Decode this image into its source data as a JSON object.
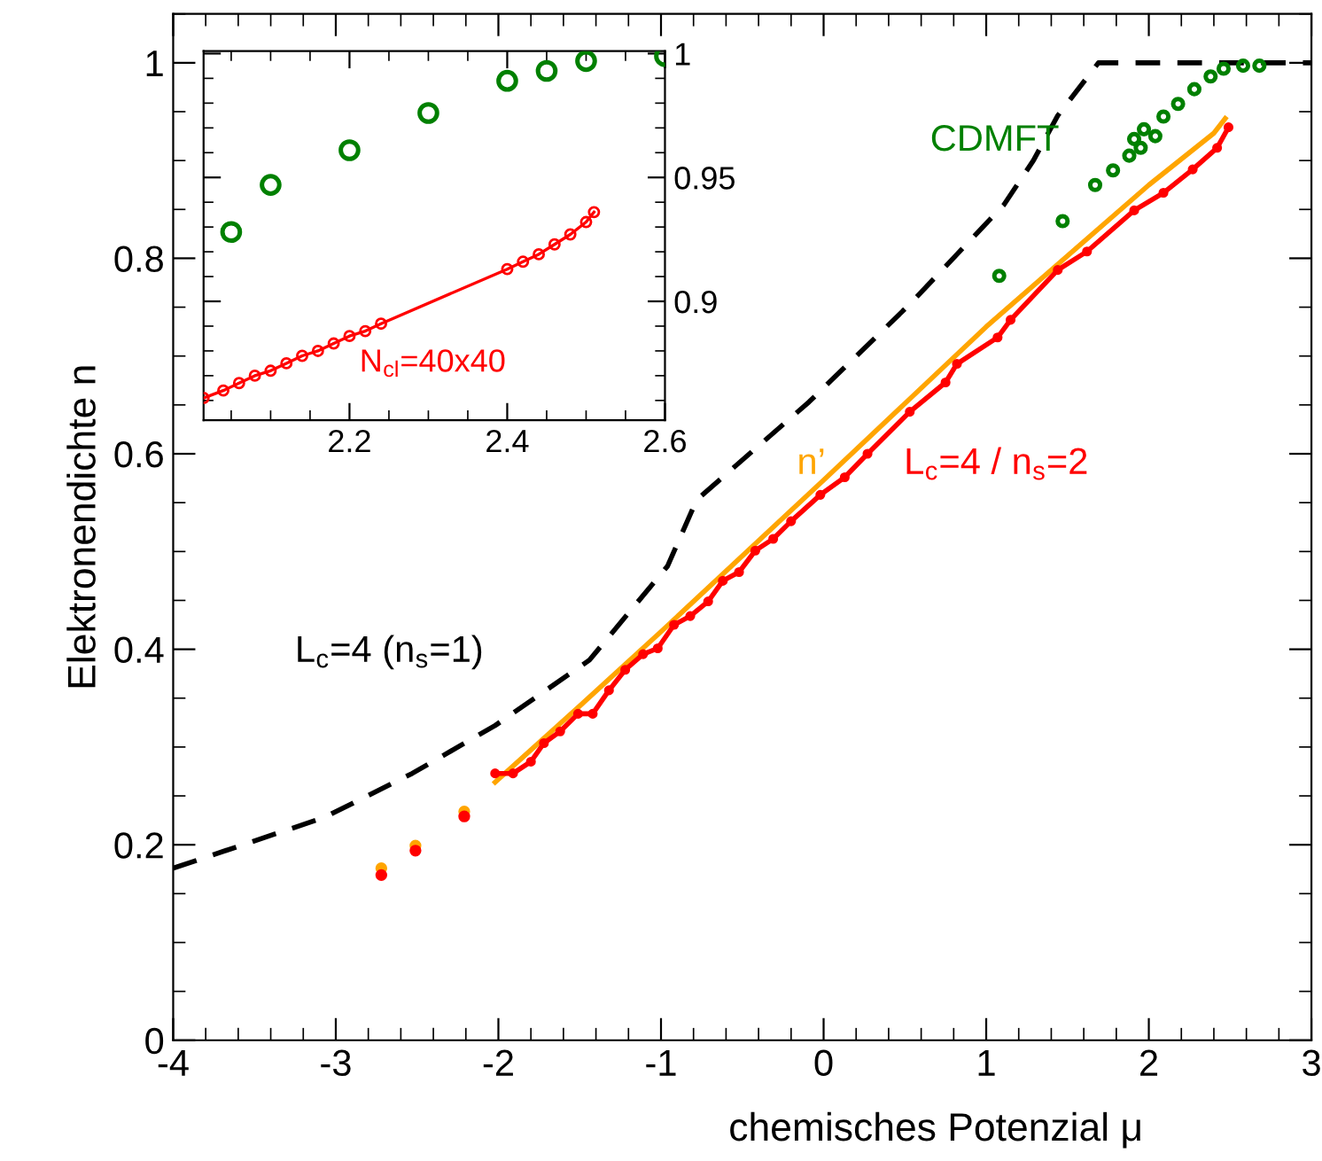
{
  "chart_data": [
    {
      "type": "line",
      "xlabel": "chemisches Potenzial μ",
      "ylabel": "Elektronendichte n",
      "xlim": [
        -4,
        3
      ],
      "ylim": [
        0,
        1.05
      ],
      "xticks": [
        -4,
        -3,
        -2,
        -1,
        0,
        1,
        2,
        3
      ],
      "yticks": [
        0,
        0.2,
        0.4,
        0.6,
        0.8,
        1
      ],
      "grid": false,
      "legend": false,
      "series": [
        {
          "name": "L$_{c}$=4 (n$_{s}$=1)",
          "color": "#000000",
          "line_style": "dashed",
          "marker": "none",
          "x": [
            -4,
            -3.07,
            -2.53,
            -2.02,
            -1.44,
            -0.96,
            -0.78,
            -0.09,
            0.53,
            1.11,
            1.29,
            1.44,
            1.69,
            3
          ],
          "values": [
            0.176,
            0.228,
            0.273,
            0.322,
            0.389,
            0.485,
            0.553,
            0.653,
            0.753,
            0.855,
            0.9,
            0.946,
            1.0,
            1.0
          ]
        },
        {
          "name": "n’",
          "color": "#ffa500",
          "line_style": "solid",
          "marker": "none",
          "x": [
            -2.02,
            -1.5,
            -1,
            0,
            1,
            2,
            2.4,
            2.47
          ],
          "values": [
            0.264,
            0.342,
            0.418,
            0.573,
            0.73,
            0.875,
            0.928,
            0.943
          ]
        },
        {
          "type": "scatter",
          "color": "#ffa500",
          "marker": "circle",
          "x": [
            -2.72,
            -2.51,
            -2.21
          ],
          "values": [
            0.176,
            0.199,
            0.234
          ]
        },
        {
          "name": "L$_{c}$=4 / n$_{s}$=2",
          "color": "#ff0000",
          "line_style": "solid",
          "marker": "circle",
          "x": [
            -2.02,
            -1.91,
            -1.8,
            -1.72,
            -1.62,
            -1.51,
            -1.42,
            -1.32,
            -1.22,
            -1.11,
            -1.02,
            -0.92,
            -0.82,
            -0.71,
            -0.62,
            -0.52,
            -0.42,
            -0.31,
            -0.2,
            -0.02,
            0.13,
            0.27,
            0.53,
            0.75,
            0.82,
            1.07,
            1.15,
            1.44,
            1.62,
            1.91,
            2.09,
            2.27,
            2.42,
            2.49
          ],
          "values": [
            0.273,
            0.273,
            0.285,
            0.304,
            0.316,
            0.334,
            0.334,
            0.358,
            0.379,
            0.395,
            0.401,
            0.425,
            0.434,
            0.449,
            0.47,
            0.479,
            0.501,
            0.513,
            0.531,
            0.558,
            0.576,
            0.6,
            0.643,
            0.673,
            0.692,
            0.719,
            0.737,
            0.788,
            0.807,
            0.849,
            0.867,
            0.891,
            0.913,
            0.934
          ]
        },
        {
          "type": "scatter",
          "color": "#ff0000",
          "marker": "circle",
          "x": [
            -2.72,
            -2.51,
            -2.21
          ],
          "values": [
            0.169,
            0.194,
            0.229
          ]
        },
        {
          "name": "CDMFT",
          "type": "scatter",
          "color": "#008000",
          "marker": "open circle",
          "x": [
            1.08,
            1.47,
            1.67,
            1.78,
            1.88,
            1.91,
            1.95,
            1.97,
            2.04,
            2.09,
            2.18,
            2.28,
            2.38,
            2.46,
            2.58,
            2.68
          ],
          "values": [
            0.782,
            0.838,
            0.875,
            0.89,
            0.905,
            0.922,
            0.913,
            0.932,
            0.925,
            0.945,
            0.958,
            0.973,
            0.986,
            0.994,
            0.997,
            0.997
          ]
        }
      ]
    },
    {
      "type": "line",
      "xlim": [
        2.015,
        2.6
      ],
      "y2lim": [
        0.852,
        1.001
      ],
      "xticks": [
        2.2,
        2.4,
        2.6
      ],
      "y2ticks": [
        0.9,
        0.95,
        1
      ],
      "grid": false,
      "legend": false,
      "series": [
        {
          "type": "scatter",
          "axis": "y2",
          "color": "#008000",
          "marker": "open circle",
          "x": [
            2.05,
            2.1,
            2.2,
            2.3,
            2.4,
            2.45,
            2.5,
            2.6
          ],
          "values": [
            0.928,
            0.947,
            0.961,
            0.976,
            0.989,
            0.993,
            0.997,
            0.999
          ]
        },
        {
          "name": "N$_{cl}$=40x40",
          "axis": "y2",
          "color": "#ff0000",
          "line_style": "solid",
          "marker": "open circle",
          "x": [
            2.015,
            2.04,
            2.06,
            2.08,
            2.1,
            2.12,
            2.14,
            2.16,
            2.18,
            2.2,
            2.22,
            2.24,
            2.4,
            2.42,
            2.44,
            2.46,
            2.48,
            2.5,
            2.51
          ],
          "values": [
            0.861,
            0.864,
            0.867,
            0.87,
            0.872,
            0.875,
            0.878,
            0.88,
            0.883,
            0.886,
            0.888,
            0.891,
            0.913,
            0.916,
            0.919,
            0.923,
            0.927,
            0.932,
            0.936
          ]
        }
      ]
    }
  ]
}
